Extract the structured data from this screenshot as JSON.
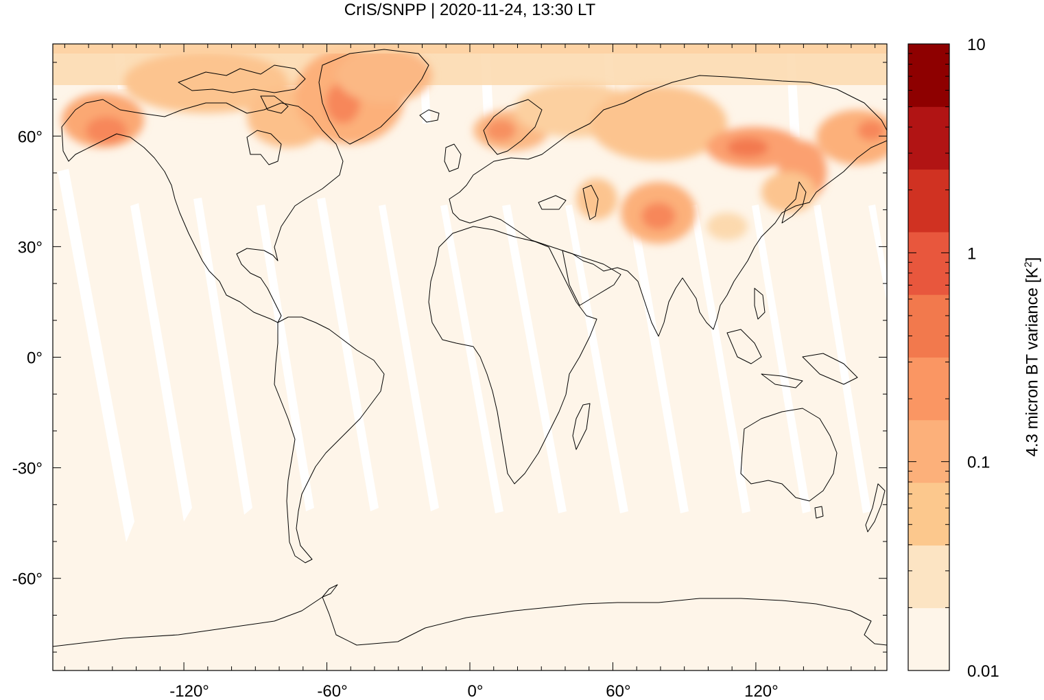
{
  "title": "CrIS/SNPP | 2020-11-24, 13:30 LT",
  "map": {
    "projection": "equirectangular",
    "lon_range": [
      -175,
      175
    ],
    "lat_range": [
      -85,
      85
    ],
    "x_ticks": [
      {
        "value": -120,
        "label": "-120°"
      },
      {
        "value": -60,
        "label": "-60°"
      },
      {
        "value": 0,
        "label": "0°"
      },
      {
        "value": 60,
        "label": "60°"
      },
      {
        "value": 120,
        "label": "120°"
      }
    ],
    "y_ticks": [
      {
        "value": 60,
        "label": "60°"
      },
      {
        "value": 30,
        "label": "30°"
      },
      {
        "value": 0,
        "label": "0°"
      },
      {
        "value": -30,
        "label": "-30°"
      },
      {
        "value": -60,
        "label": "-60°"
      }
    ],
    "background_color": "#fef5e9",
    "coastline_color": "#000000"
  },
  "colorbar": {
    "scale": "log",
    "range": [
      0.01,
      10
    ],
    "label_text": "4.3 micron BT variance [K",
    "label_sup": "2",
    "label_tail": "]",
    "ticks": [
      {
        "value": 10,
        "label": "10"
      },
      {
        "value": 1,
        "label": "1"
      },
      {
        "value": 0.1,
        "label": "0.1"
      },
      {
        "value": 0.01,
        "label": "0.01"
      }
    ],
    "colors": [
      "#fef5e9",
      "#fce4c3",
      "#fcc88d",
      "#fcb07a",
      "#fa9663",
      "#f2794d",
      "#e8573d",
      "#d03222",
      "#b11414",
      "#8e0000"
    ]
  }
}
